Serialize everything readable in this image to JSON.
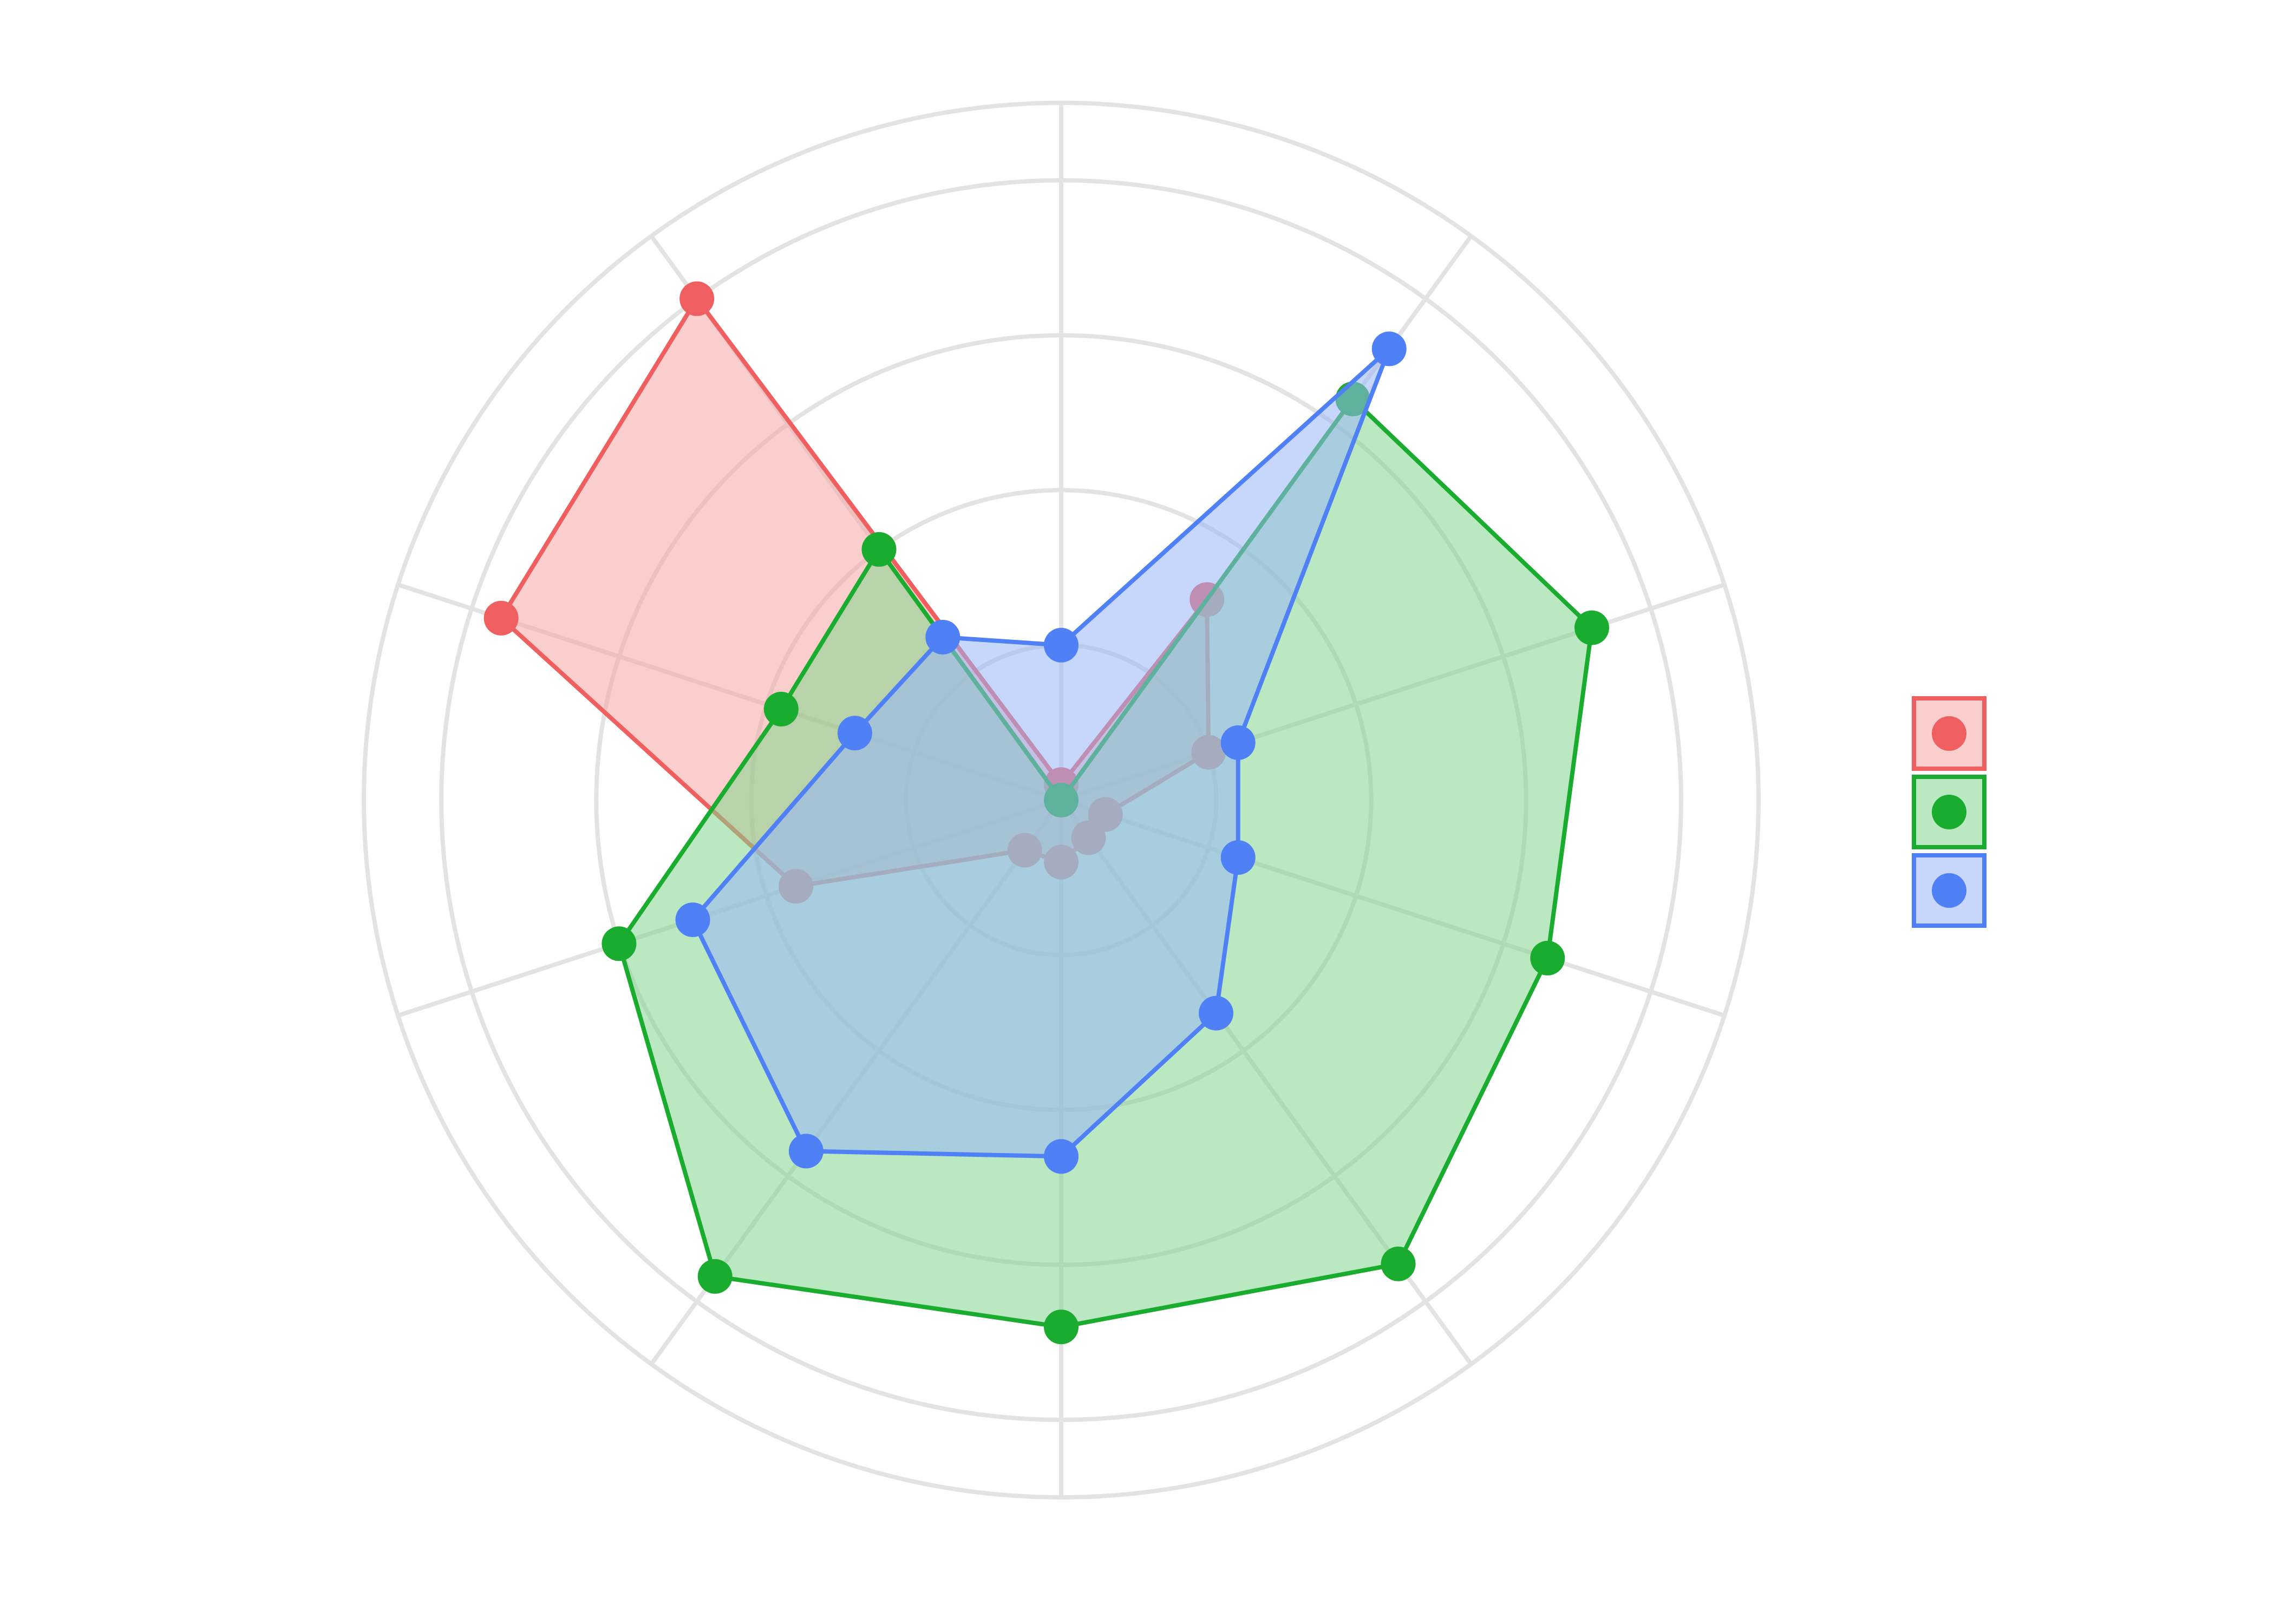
{
  "chart_data": {
    "type": "radar",
    "title": "",
    "axes_count": 10,
    "grid": true,
    "rlim": [
      0,
      4.5
    ],
    "grid_levels": [
      1,
      2,
      3,
      4,
      4.5
    ],
    "show_radial_ticks": false,
    "show_angular_labels": false,
    "legend": {
      "position": "right",
      "labels_visible": false
    },
    "series": [
      {
        "color": "#ef5f5f",
        "fill": "#f8a5a5",
        "values": [
          0.1,
          1.6,
          1.0,
          0.3,
          0.3,
          0.4,
          0.4,
          1.8,
          3.8,
          4.0
        ]
      },
      {
        "color": "#1aac2e",
        "fill": "#82d68c",
        "values": [
          0.0,
          3.2,
          3.6,
          3.3,
          3.7,
          3.4,
          3.8,
          3.0,
          1.9,
          2.0
        ]
      },
      {
        "color": "#5080f5",
        "fill": "#98b6f7",
        "values": [
          1.0,
          3.6,
          1.2,
          1.2,
          1.7,
          2.3,
          2.8,
          2.5,
          1.4,
          1.3
        ]
      }
    ]
  }
}
